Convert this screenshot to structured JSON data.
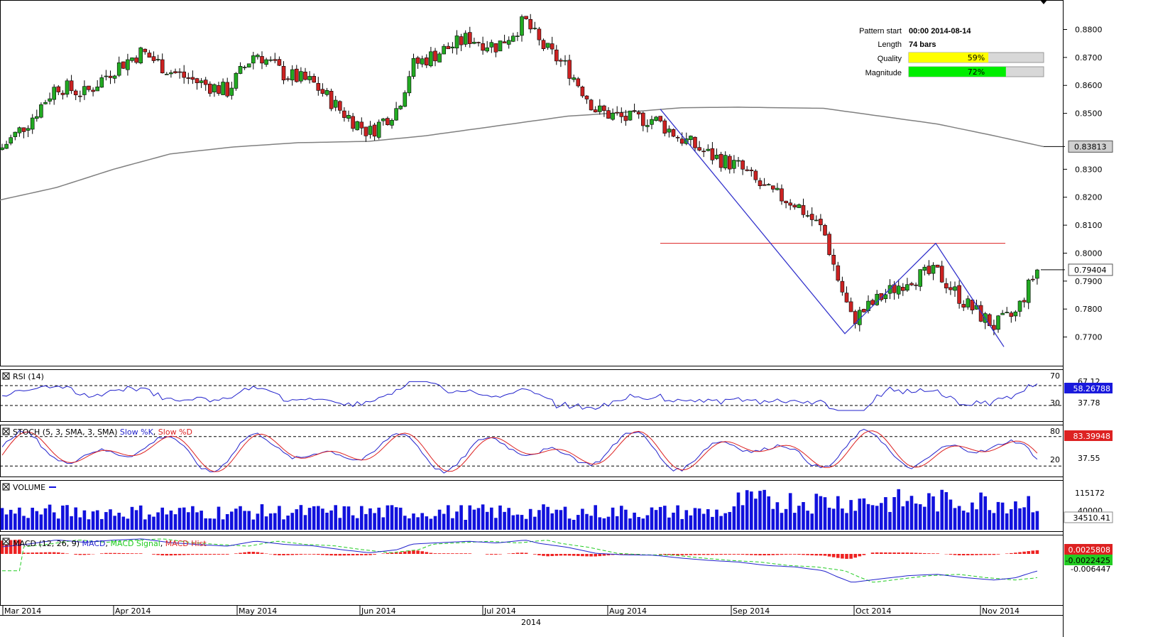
{
  "chart_data": {
    "type": "candlestick",
    "symbol_period_label": "2014",
    "months": [
      "Mar 2014",
      "Apr 2014",
      "May 2014",
      "Jun 2014",
      "Jul 2014",
      "Aug 2014",
      "Sep 2014",
      "Oct 2014",
      "Nov 2014"
    ],
    "price_ticks": [
      "0.8800",
      "0.8700",
      "0.8600",
      "0.8500",
      "0.8300",
      "0.8200",
      "0.8100",
      "0.8000",
      "0.7900",
      "0.7800",
      "0.7700"
    ],
    "price_range": [
      0.761,
      0.888
    ],
    "current_price_label": "0.79404",
    "current_price": 0.79404,
    "ma_label": "0.83813",
    "ma_value": 0.83813,
    "ma_anchors": [
      [
        0,
        0.819
      ],
      [
        80,
        0.8235
      ],
      [
        160,
        0.83
      ],
      [
        240,
        0.8355
      ],
      [
        330,
        0.838
      ],
      [
        420,
        0.8395
      ],
      [
        520,
        0.84
      ],
      [
        600,
        0.842
      ],
      [
        700,
        0.8455
      ],
      [
        800,
        0.849
      ],
      [
        860,
        0.85
      ],
      [
        960,
        0.852
      ],
      [
        1040,
        0.8522
      ],
      [
        1160,
        0.8518
      ],
      [
        1240,
        0.849
      ],
      [
        1320,
        0.8462
      ],
      [
        1400,
        0.842
      ],
      [
        1470,
        0.8381
      ]
    ],
    "resistance": {
      "value": 0.8035,
      "x1": 930,
      "x2": 1416
    },
    "pattern_points": [
      [
        930,
        0.8515
      ],
      [
        1190,
        0.7712
      ],
      [
        1318,
        0.8035
      ],
      [
        1414,
        0.7665
      ]
    ],
    "pattern_info": {
      "pattern_start_label": "Pattern start",
      "pattern_start": "00:00 2014-08-14",
      "length_label": "Length",
      "length": "74 bars",
      "quality_label": "Quality",
      "quality": 59,
      "quality_text": "59%",
      "magnitude_label": "Magnitude",
      "magnitude": 72,
      "magnitude_text": "72%"
    },
    "close_anchors": [
      [
        0,
        0.837
      ],
      [
        40,
        0.847
      ],
      [
        80,
        0.86
      ],
      [
        120,
        0.857
      ],
      [
        160,
        0.866
      ],
      [
        200,
        0.872
      ],
      [
        240,
        0.865
      ],
      [
        280,
        0.861
      ],
      [
        320,
        0.858
      ],
      [
        360,
        0.872
      ],
      [
        400,
        0.864
      ],
      [
        440,
        0.861
      ],
      [
        480,
        0.851
      ],
      [
        520,
        0.843
      ],
      [
        560,
        0.852
      ],
      [
        580,
        0.867
      ],
      [
        620,
        0.872
      ],
      [
        660,
        0.877
      ],
      [
        700,
        0.874
      ],
      [
        740,
        0.883
      ],
      [
        760,
        0.875
      ],
      [
        800,
        0.866
      ],
      [
        840,
        0.851
      ],
      [
        880,
        0.848
      ],
      [
        920,
        0.848
      ],
      [
        960,
        0.841
      ],
      [
        1000,
        0.835
      ],
      [
        1040,
        0.831
      ],
      [
        1080,
        0.822
      ],
      [
        1120,
        0.818
      ],
      [
        1160,
        0.808
      ],
      [
        1180,
        0.791
      ],
      [
        1200,
        0.776
      ],
      [
        1240,
        0.784
      ],
      [
        1280,
        0.791
      ],
      [
        1320,
        0.793
      ],
      [
        1360,
        0.782
      ],
      [
        1400,
        0.774
      ],
      [
        1430,
        0.778
      ],
      [
        1460,
        0.794
      ]
    ],
    "rsi": {
      "label": "RSI (14)",
      "levels": [
        "70",
        "30"
      ],
      "value_label": "58.26788",
      "mid_label": "37.78",
      "clipped_label": "67.12"
    },
    "stoch": {
      "label": "STOCH (5, 3, SMA, 3, SMA)",
      "k_label": "Slow %K",
      "d_label": "Slow %D",
      "levels": [
        "80",
        "20"
      ],
      "value_label": "83.39948",
      "mid_label": "37.55"
    },
    "volume": {
      "label": "VOLUME",
      "value_label": "34510.41",
      "max_label": "115172",
      "clipped_label": "40000"
    },
    "macd": {
      "label": "MACD (12, 26, 9)",
      "macd_label": "MACD",
      "signal_label": "MACD Signal",
      "hist_label": "MACD Hist",
      "value1": "0.0025808",
      "value2": "-0.0022425",
      "value3": "-0.006447"
    },
    "colors": {
      "up": "#22aa22",
      "down": "#cc2222",
      "ma": "#808080",
      "pattern": "#3333cc",
      "resistance": "#dd2222",
      "volume": "#1111dd",
      "quality": "#ffff00",
      "magnitude": "#00ee00"
    }
  }
}
